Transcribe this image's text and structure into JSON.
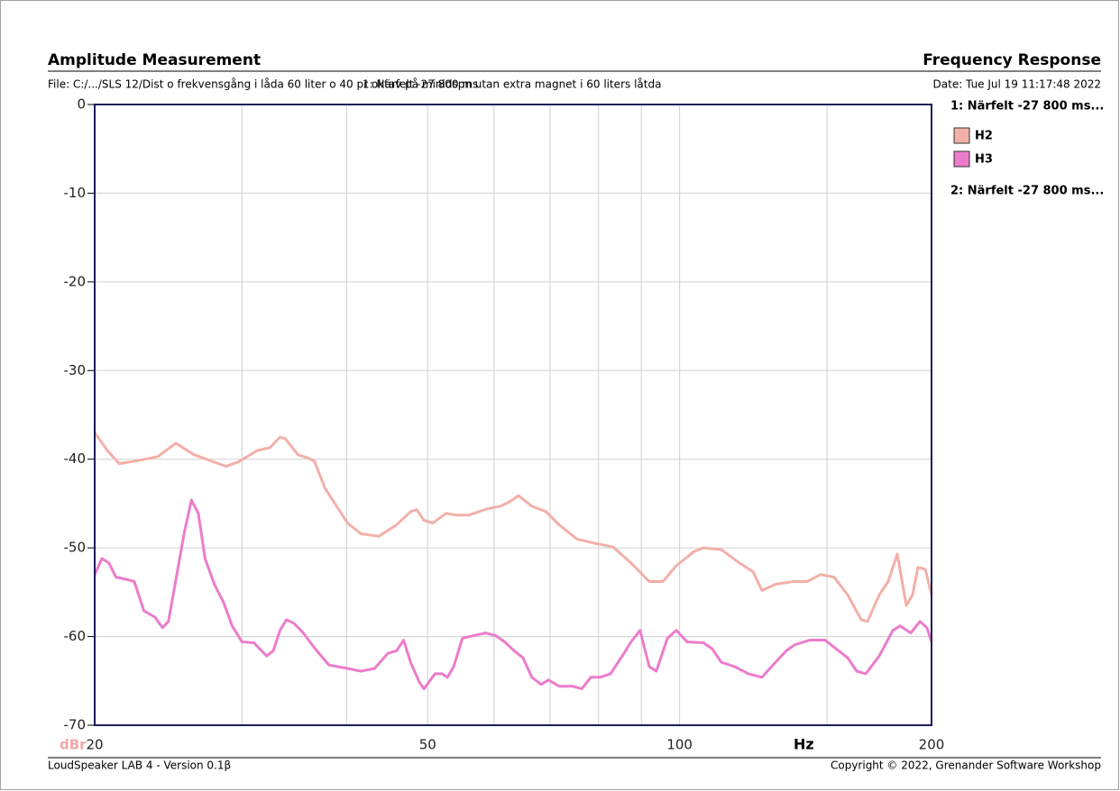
{
  "chart_data": {
    "type": "line",
    "title": "Amplitude Measurement",
    "subtitle": "Frequency Response",
    "file_label": "File: C:/.../SLS 12/Dist o frekvensgång i låda 60 liter o 40 pr oktav på minidspn utan extra magnet i 60 liters låtda",
    "overlay_label": "1: Närfelt -27 800 ms",
    "date_label": "Date: Tue Jul 19 11:17:48 2022",
    "y_label": "dBr",
    "x_label": "Hz",
    "footer_left": "LoudSpeaker LAB 4 - Version 0.1β",
    "footer_right": "Copyright © 2022, Grenander Software Workshop",
    "legend_groups": [
      "1: Närfelt -27 800 ms...",
      "2: Närfelt -27 800 ms..."
    ],
    "x_log": true,
    "grid": true,
    "xlim": [
      20,
      200
    ],
    "xticks": [
      20,
      50,
      100,
      200
    ],
    "xgrid": [
      30,
      40,
      60,
      70,
      80,
      90,
      150
    ],
    "ylim": [
      -70,
      0
    ],
    "yticks": [
      0,
      -10,
      -20,
      -30,
      -40,
      -50,
      -60,
      -70
    ],
    "series": [
      {
        "name": "H2",
        "color": "#f2b0a8",
        "x": [
          20,
          20.7,
          21.4,
          22.4,
          23.8,
          25.0,
          26.3,
          28.7,
          29.7,
          31.3,
          32.4,
          33.3,
          33.8,
          35.0,
          35.8,
          36.6,
          37.7,
          39.1,
          40.1,
          41.6,
          43.7,
          45.9,
          47.7,
          48.5,
          49.5,
          50.7,
          52.6,
          54.0,
          56.0,
          58.9,
          61.1,
          62.6,
          64.2,
          66.6,
          69.2,
          71.8,
          75.4,
          79.3,
          83.3,
          87.5,
          92.0,
          95.5,
          99.1,
          104.1,
          106.8,
          112.2,
          117.9,
          122.4,
          125.4,
          130.2,
          136.8,
          142.0,
          147.4,
          153.0,
          158.8,
          164.8,
          167.7,
          173.2,
          177.5,
          182.0,
          186.6,
          189.8,
          192.7,
          196.6,
          200
        ],
        "values": [
          -37.0,
          -39.0,
          -40.5,
          -40.2,
          -39.7,
          -38.2,
          -39.5,
          -40.8,
          -40.3,
          -39.0,
          -38.7,
          -37.5,
          -37.7,
          -39.5,
          -39.8,
          -40.2,
          -43.3,
          -45.6,
          -47.2,
          -48.4,
          -48.7,
          -47.4,
          -45.9,
          -45.7,
          -46.9,
          -47.2,
          -46.1,
          -46.3,
          -46.3,
          -45.6,
          -45.3,
          -44.8,
          -44.1,
          -45.3,
          -45.9,
          -47.4,
          -49.0,
          -49.5,
          -49.9,
          -51.7,
          -53.8,
          -53.8,
          -52.0,
          -50.4,
          -50.0,
          -50.2,
          -51.7,
          -52.7,
          -54.8,
          -54.1,
          -53.8,
          -53.8,
          -53.0,
          -53.3,
          -55.3,
          -58.1,
          -58.3,
          -55.3,
          -53.8,
          -50.7,
          -56.5,
          -55.3,
          -52.2,
          -52.4,
          -55.3
        ]
      },
      {
        "name": "H3",
        "color": "#ec7ccb",
        "x": [
          20,
          20.4,
          20.8,
          21.2,
          21.7,
          22.3,
          22.9,
          23.6,
          24.1,
          24.5,
          25.6,
          26.1,
          26.6,
          27.1,
          27.8,
          28.5,
          29.2,
          30.0,
          31.0,
          32.1,
          32.7,
          33.3,
          33.9,
          34.6,
          35.5,
          36.7,
          38.1,
          40.1,
          41.6,
          43.2,
          44.8,
          45.9,
          46.8,
          47.7,
          48.9,
          49.5,
          51.0,
          52.0,
          52.8,
          53.7,
          55.0,
          56.7,
          58.6,
          60.3,
          61.8,
          63.4,
          65.0,
          66.6,
          68.3,
          69.7,
          71.8,
          74.5,
          76.4,
          78.3,
          80.3,
          82.7,
          85.4,
          87.5,
          89.7,
          92.0,
          93.8,
          96.7,
          99.1,
          102.1,
          106.8,
          109.4,
          112.2,
          116.4,
          120.9,
          125.4,
          130.2,
          134.1,
          137.5,
          143.1,
          149.2,
          153.0,
          158.8,
          162.8,
          166.9,
          173.2,
          179.8,
          183.4,
          188.9,
          193.7,
          197.5,
          200
        ],
        "values": [
          -53.0,
          -51.2,
          -51.7,
          -53.3,
          -53.5,
          -53.8,
          -57.1,
          -57.8,
          -59.0,
          -58.3,
          -48.2,
          -44.6,
          -46.1,
          -51.2,
          -54.1,
          -56.1,
          -58.8,
          -60.6,
          -60.7,
          -62.2,
          -61.6,
          -59.3,
          -58.1,
          -58.5,
          -59.6,
          -61.4,
          -63.2,
          -63.6,
          -63.9,
          -63.6,
          -61.9,
          -61.6,
          -60.4,
          -62.9,
          -65.2,
          -65.9,
          -64.2,
          -64.2,
          -64.6,
          -63.4,
          -60.2,
          -59.9,
          -59.6,
          -59.9,
          -60.6,
          -61.6,
          -62.4,
          -64.6,
          -65.4,
          -64.9,
          -65.6,
          -65.6,
          -65.9,
          -64.6,
          -64.6,
          -64.2,
          -62.2,
          -60.6,
          -59.3,
          -63.4,
          -63.9,
          -60.2,
          -59.3,
          -60.6,
          -60.7,
          -61.4,
          -62.9,
          -63.4,
          -64.2,
          -64.6,
          -62.9,
          -61.6,
          -60.9,
          -60.4,
          -60.4,
          -61.2,
          -62.4,
          -63.9,
          -64.2,
          -62.2,
          -59.3,
          -58.8,
          -59.6,
          -58.3,
          -59.0,
          -60.6
        ]
      }
    ]
  }
}
